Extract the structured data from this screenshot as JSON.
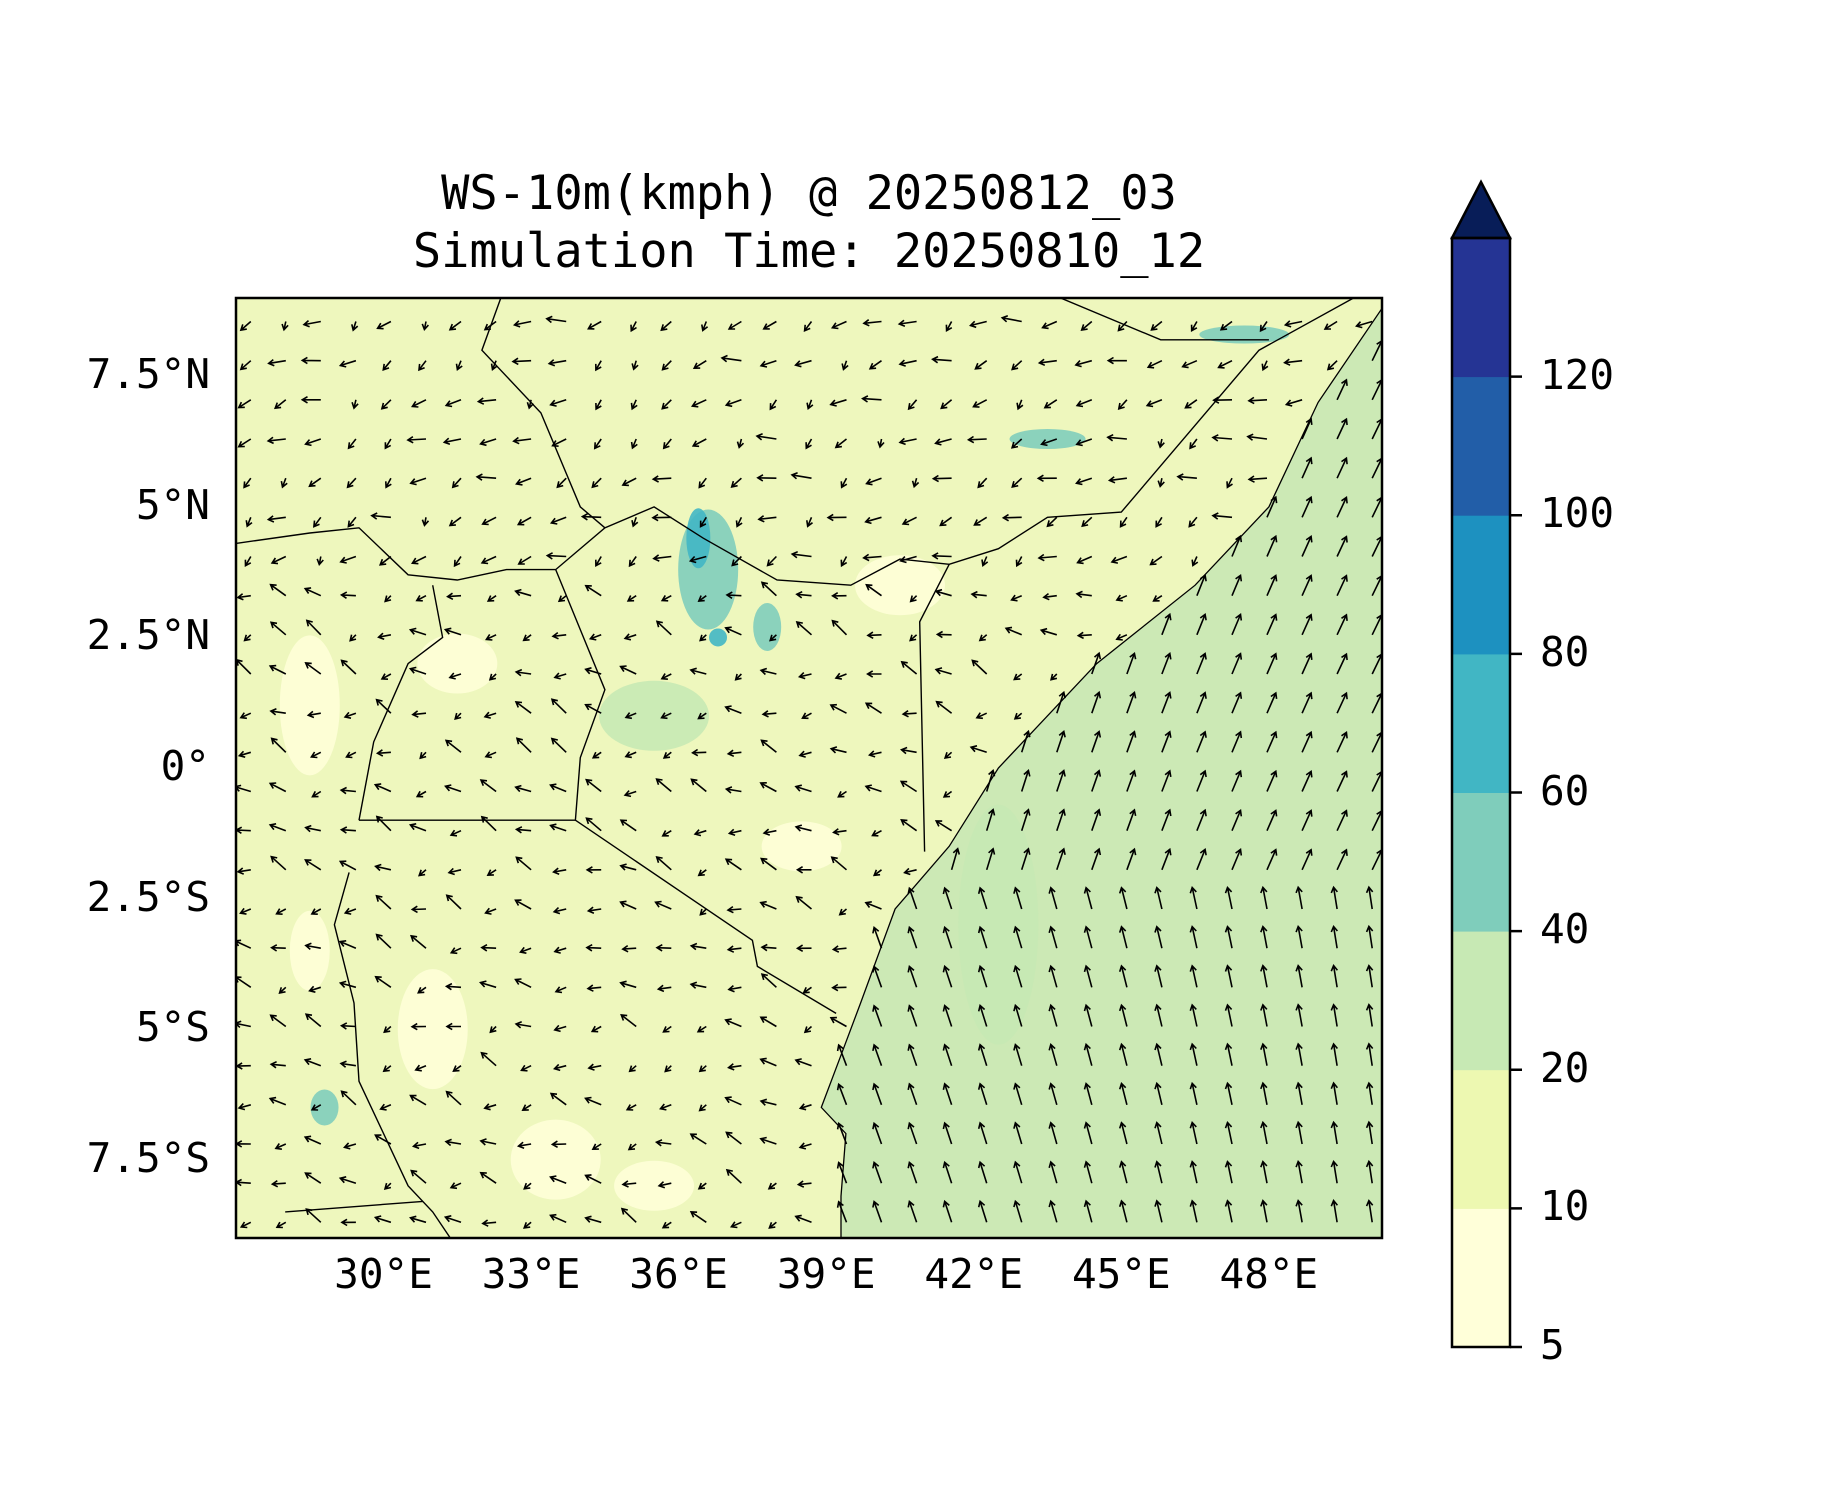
{
  "title": {
    "line1": "WS-10m(kmph) @ 20250812_03",
    "line2": "Simulation Time: 20250810_12"
  },
  "map": {
    "lon_range": [
      27.0,
      50.3
    ],
    "lat_range": [
      -9.0,
      9.0
    ],
    "x_ticks": [
      {
        "lon": 30,
        "label": "30°E"
      },
      {
        "lon": 33,
        "label": "33°E"
      },
      {
        "lon": 36,
        "label": "36°E"
      },
      {
        "lon": 39,
        "label": "39°E"
      },
      {
        "lon": 42,
        "label": "42°E"
      },
      {
        "lon": 45,
        "label": "45°E"
      },
      {
        "lon": 48,
        "label": "48°E"
      }
    ],
    "y_ticks": [
      {
        "lat": 7.5,
        "label": "7.5°N"
      },
      {
        "lat": 5,
        "label": "5°N"
      },
      {
        "lat": 2.5,
        "label": "2.5°N"
      },
      {
        "lat": 0,
        "label": "0°"
      },
      {
        "lat": -2.5,
        "label": "2.5°S"
      },
      {
        "lat": -5,
        "label": "5°S"
      },
      {
        "lat": -7.5,
        "label": "7.5°S"
      }
    ],
    "land_fill": "#eef7bd",
    "ocean_fill": "#cce9b5",
    "arrow_color": "#000000"
  },
  "colorbar": {
    "levels": [
      "5",
      "10",
      "20",
      "40",
      "60",
      "80",
      "100",
      "120"
    ],
    "colors": [
      "#ffffd9",
      "#edf8b1",
      "#c7e9b4",
      "#7fcdbb",
      "#41b6c4",
      "#1d91c0",
      "#225ea8",
      "#253494"
    ],
    "extend_color": "#081d58"
  }
}
